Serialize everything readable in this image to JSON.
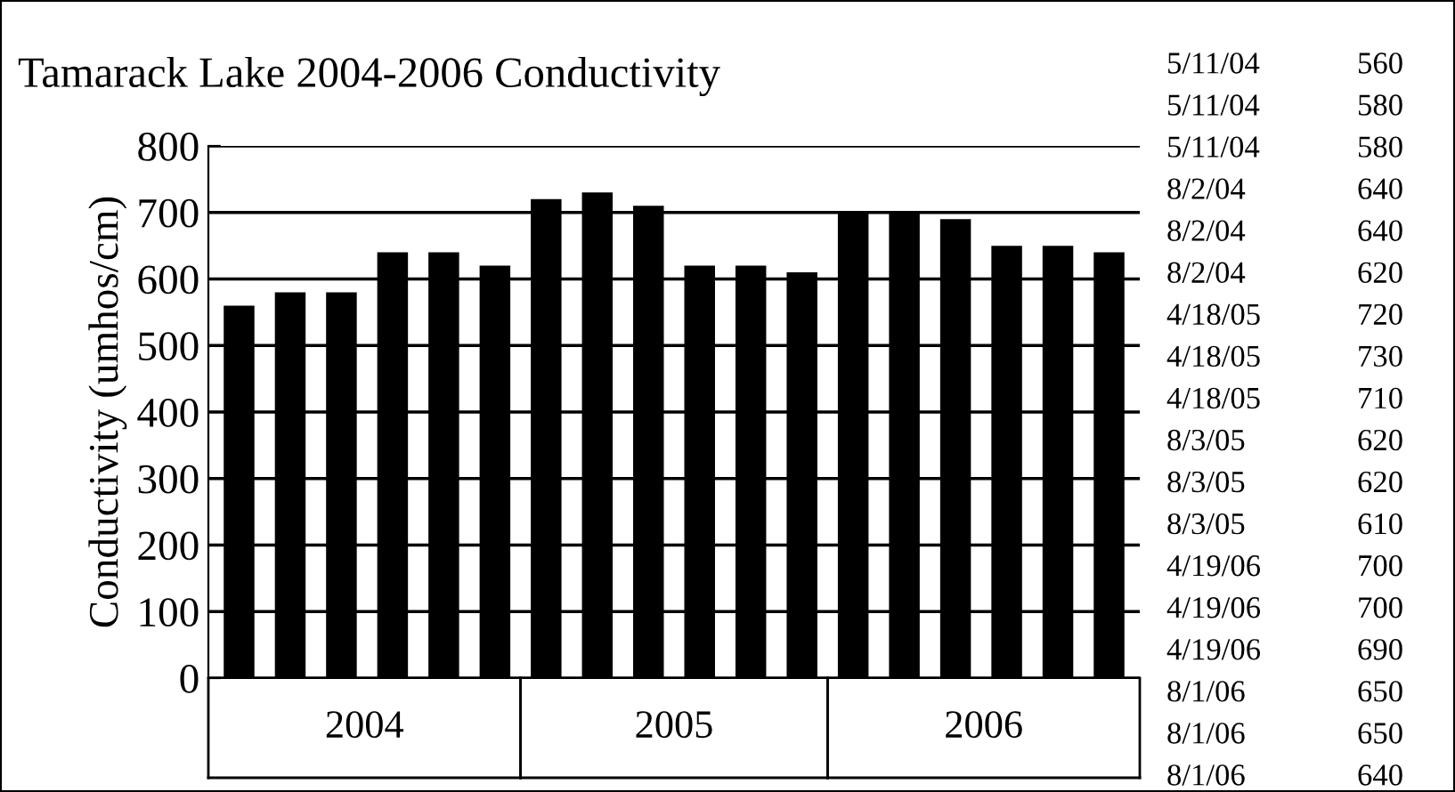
{
  "chart_data": {
    "type": "bar",
    "title": "Tamarack Lake 2004-2006 Conductivity",
    "ylabel": "Conductivity (umhos/cm)",
    "categories": [
      null,
      null,
      null,
      null,
      null,
      null,
      null,
      null,
      null,
      null,
      null,
      null,
      null,
      null,
      null,
      null,
      null,
      null
    ],
    "values": [
      560,
      580,
      580,
      640,
      640,
      620,
      720,
      730,
      710,
      620,
      620,
      610,
      700,
      700,
      690,
      650,
      650,
      640
    ],
    "color": "#000000",
    "ylim": [
      0,
      800
    ],
    "yticks": [
      0,
      100,
      200,
      300,
      400,
      500,
      600,
      700,
      800
    ],
    "grid": "y",
    "annotations": [
      "2004",
      "2005",
      "2006",
      "5/11/04",
      "560",
      "5/11/04",
      "580",
      "5/11/04",
      "580",
      "8/2/04",
      "640",
      "8/2/04",
      "640",
      "8/2/04",
      "620",
      "4/18/05",
      "720",
      "4/18/05",
      "730",
      "4/18/05",
      "710",
      "8/3/05",
      "620",
      "8/3/05",
      "620",
      "8/3/05",
      "610",
      "4/19/06",
      "700",
      "4/19/06",
      "700",
      "4/19/06",
      "690",
      "8/1/06",
      "650",
      "8/1/06",
      "650",
      "8/1/06",
      "640"
    ]
  }
}
